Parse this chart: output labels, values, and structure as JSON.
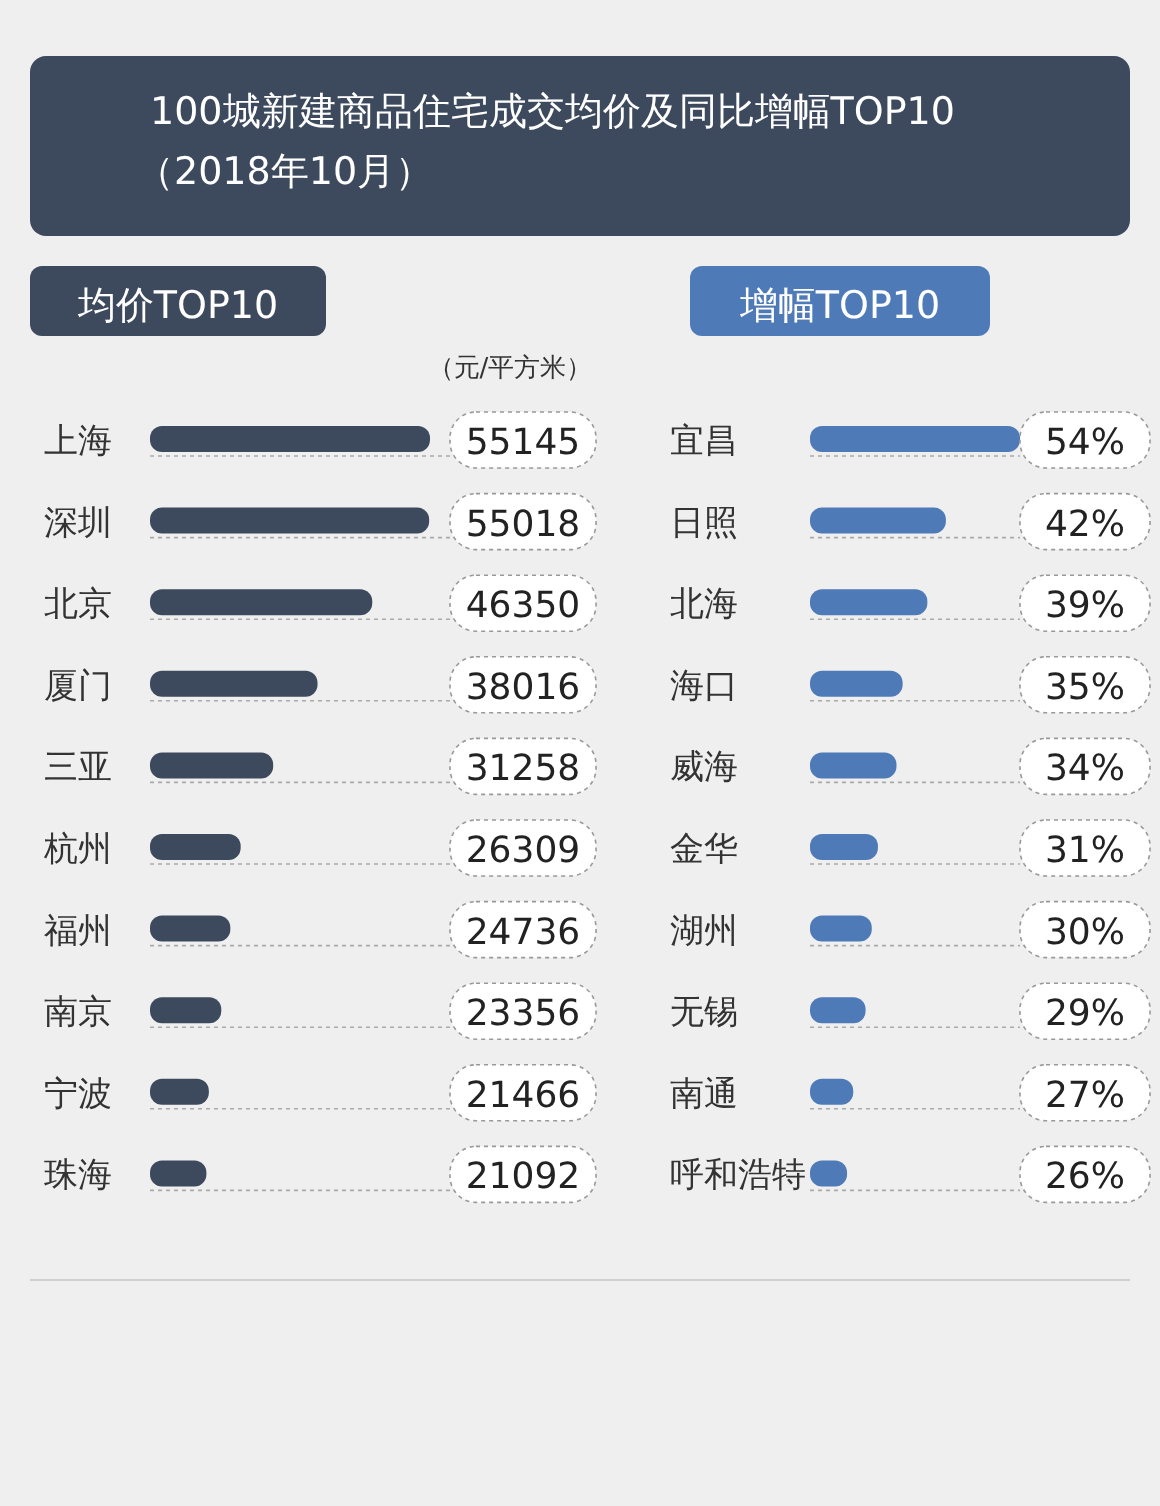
{
  "chart_data": [
    {
      "type": "other",
      "title": "100城新建商品住宅成交均价及同比增幅TOP10",
      "subtitle": "（2018年10月）"
    },
    {
      "type": "bar",
      "orientation": "horizontal",
      "title": "均价TOP10",
      "subtitle": "（元/平方米）",
      "categories": [
        "上海",
        "深圳",
        "北京",
        "厦门",
        "三亚",
        "杭州",
        "福州",
        "南京",
        "宁波",
        "珠海"
      ],
      "values": [
        55145,
        55018,
        46350,
        38016,
        31258,
        26309,
        24736,
        23356,
        21466,
        21092
      ],
      "color": "#3d4a5e",
      "xlim": [
        12500,
        55145
      ],
      "data_labels": true,
      "tick_labels": false
    },
    {
      "type": "bar",
      "orientation": "horizontal",
      "title": "增幅TOP10",
      "categories": [
        "宜昌",
        "日照",
        "北海",
        "海口",
        "威海",
        "金华",
        "湖州",
        "无锡",
        "南通",
        "呼和浩特"
      ],
      "values": [
        54,
        42,
        39,
        35,
        34,
        31,
        30,
        29,
        27,
        26
      ],
      "value_labels": [
        "54%",
        "42%",
        "39%",
        "35%",
        "34%",
        "31%",
        "30%",
        "29%",
        "27%",
        "26%"
      ],
      "color": "#4f7ab8",
      "xlim": [
        20,
        54
      ],
      "tick_labels": false
    }
  ]
}
